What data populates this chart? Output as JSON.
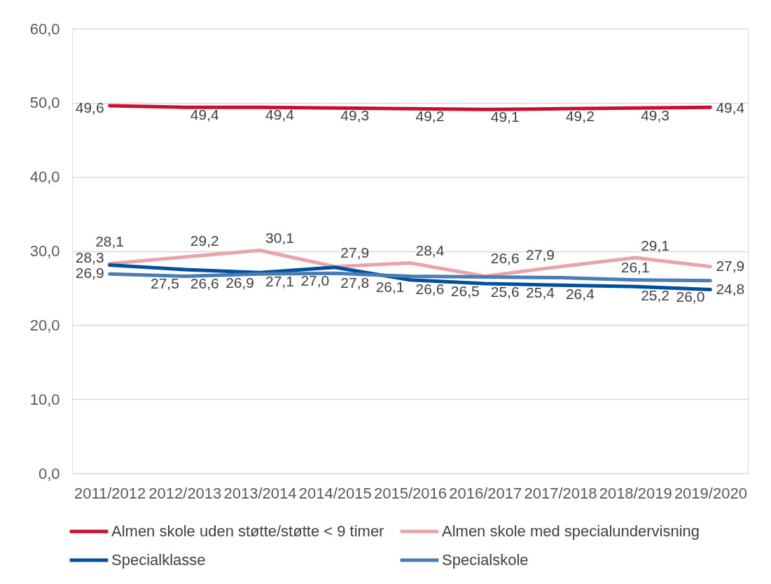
{
  "chart_data": {
    "type": "line",
    "categories": [
      "2011/2012",
      "2012/2013",
      "2013/2014",
      "2014/2015",
      "2015/2016",
      "2016/2017",
      "2017/2018",
      "2018/2019",
      "2019/2020"
    ],
    "ylim": [
      0,
      60
    ],
    "yticks": [
      {
        "value": 0,
        "label": "0,0"
      },
      {
        "value": 10,
        "label": "10,0"
      },
      {
        "value": 20,
        "label": "20,0"
      },
      {
        "value": 30,
        "label": "30,0"
      },
      {
        "value": 40,
        "label": "40,0"
      },
      {
        "value": 50,
        "label": "50,0"
      },
      {
        "value": 60,
        "label": "60,0"
      }
    ],
    "grid": "y",
    "legend": "bottom",
    "line_style": "solid",
    "series": [
      {
        "name": "Almen skole uden støtte/støtte < 9 timer",
        "color": "#c8102e",
        "values": [
          49.6,
          49.4,
          49.4,
          49.3,
          49.2,
          49.1,
          49.2,
          49.3,
          49.4
        ],
        "value_labels": [
          "49,6",
          "49,4",
          "49,4",
          "49,3",
          "49,2",
          "49,1",
          "49,2",
          "49,3",
          "49,4"
        ]
      },
      {
        "name": "Almen skole med specialundervisning",
        "color": "#e8a3ab",
        "values": [
          28.3,
          29.2,
          30.1,
          27.9,
          28.4,
          26.6,
          27.9,
          29.1,
          27.9
        ],
        "value_labels": [
          "28,3",
          "29,2",
          "30,1",
          "27,9",
          "28,4",
          "26,6",
          "27,9",
          "29,1",
          "27,9"
        ]
      },
      {
        "name": "Specialklasse",
        "color": "#004f9f",
        "values": [
          28.1,
          27.5,
          27.1,
          27.8,
          26.1,
          25.6,
          25.4,
          25.2,
          24.8
        ],
        "value_labels": [
          "28,1",
          "27,5",
          "27,1",
          "27,8",
          "26,1",
          "25,6",
          "25,4",
          "25,2",
          "24,8"
        ]
      },
      {
        "name": "Specialskole",
        "color": "#4a7eb3",
        "values": [
          26.9,
          26.6,
          26.9,
          27.0,
          26.6,
          26.5,
          26.4,
          26.1,
          26.0
        ],
        "value_labels": [
          "26,9",
          "26,6",
          "26,9",
          "27,0",
          "26,6",
          "26,5",
          "26,4",
          "26,1",
          "26,0"
        ]
      }
    ]
  }
}
